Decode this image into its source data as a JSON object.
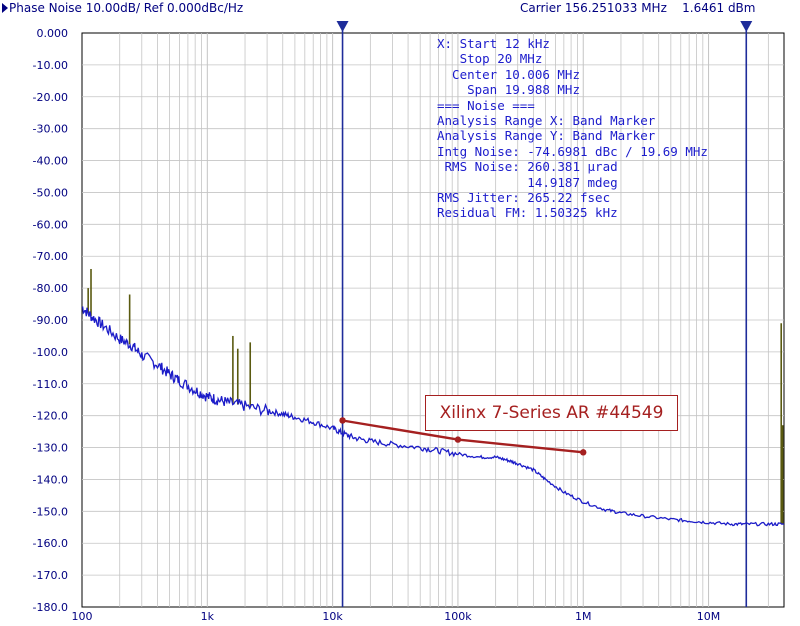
{
  "header": {
    "title": "Phase Noise 10.00dB/ Ref 0.000dBc/Hz",
    "carrier": "Carrier 156.251033 MHz",
    "carrier_power": "1.6461 dBm"
  },
  "info_panel": {
    "lines": [
      "X: Start 12 kHz",
      "   Stop 20 MHz",
      "  Center 10.006 MHz",
      "    Span 19.988 MHz",
      "=== Noise ===",
      "Analysis Range X: Band Marker",
      "Analysis Range Y: Band Marker",
      "Intg Noise: -74.6981 dBc / 19.69 MHz",
      " RMS Noise: 260.381 µrad",
      "            14.9187 mdeg",
      "RMS Jitter: 265.22 fsec",
      "Residual FM: 1.50325 kHz"
    ]
  },
  "annotation": {
    "label": "Xilinx 7-Series AR #44549"
  },
  "colors": {
    "trace": "#1c1cc8",
    "grid": "#c4c4c4",
    "marker_line": "#1e2c9a",
    "annotation": "#a52020",
    "spur": "#5a5a10",
    "axis_text": "#000080"
  },
  "chart_data": {
    "type": "line",
    "x_scale": "log",
    "xlim": [
      100,
      40000000
    ],
    "ylim": [
      -180,
      0
    ],
    "y_tick_step": 10,
    "grid": true,
    "x_tick_labels": [
      {
        "value": 100,
        "label": "100"
      },
      {
        "value": 1000,
        "label": "1k"
      },
      {
        "value": 10000,
        "label": "10k"
      },
      {
        "value": 100000,
        "label": "100k"
      },
      {
        "value": 1000000,
        "label": "1M"
      },
      {
        "value": 10000000,
        "label": "10M"
      }
    ],
    "y_tick_labels": [
      "0.000",
      "-10.00",
      "-20.00",
      "-30.00",
      "-40.00",
      "-50.00",
      "-60.00",
      "-70.00",
      "-80.00",
      "-90.00",
      "-100.0",
      "-110.0",
      "-120.0",
      "-130.0",
      "-140.0",
      "-150.0",
      "-160.0",
      "-170.0",
      "-180.0"
    ],
    "band_markers": [
      12000,
      20000000
    ],
    "series": [
      {
        "x": [
          100,
          120,
          150,
          200,
          250,
          300,
          400,
          500,
          600,
          800,
          1000,
          1200,
          1500,
          2000,
          3000,
          4000,
          5000,
          7000,
          10000,
          12000,
          15000,
          20000,
          30000,
          50000,
          70000,
          100000,
          150000,
          200000,
          250000,
          300000,
          400000,
          500000,
          700000,
          1000000,
          1500000,
          2000000,
          3000000,
          5000000,
          7000000,
          10000000,
          15000000,
          20000000,
          30000000,
          40000000
        ],
        "y": [
          -86,
          -89,
          -92,
          -96,
          -98,
          -101,
          -104,
          -107,
          -109,
          -112,
          -114,
          -115,
          -116,
          -117,
          -118.5,
          -119.5,
          -120.5,
          -122,
          -124,
          -125.5,
          -127,
          -128,
          -129,
          -130,
          -131,
          -132,
          -133,
          -133,
          -134,
          -135,
          -137,
          -140,
          -144,
          -147,
          -149.5,
          -150.5,
          -151.5,
          -152.5,
          -153,
          -153.5,
          -154,
          -154,
          -154,
          -154
        ]
      }
    ],
    "spurs": [
      {
        "x": 118,
        "y": -74
      },
      {
        "x": 112,
        "y": -80
      },
      {
        "x": 240,
        "y": -82
      },
      {
        "x": 1600,
        "y": -95
      },
      {
        "x": 1750,
        "y": -99
      },
      {
        "x": 2200,
        "y": -97
      },
      {
        "x": 38000000,
        "y": -91
      },
      {
        "x": 39000000,
        "y": -123
      }
    ],
    "annotation_line": {
      "x": [
        12000,
        100000,
        1000000
      ],
      "y": [
        -121.5,
        -127.5,
        -131.5
      ]
    }
  }
}
